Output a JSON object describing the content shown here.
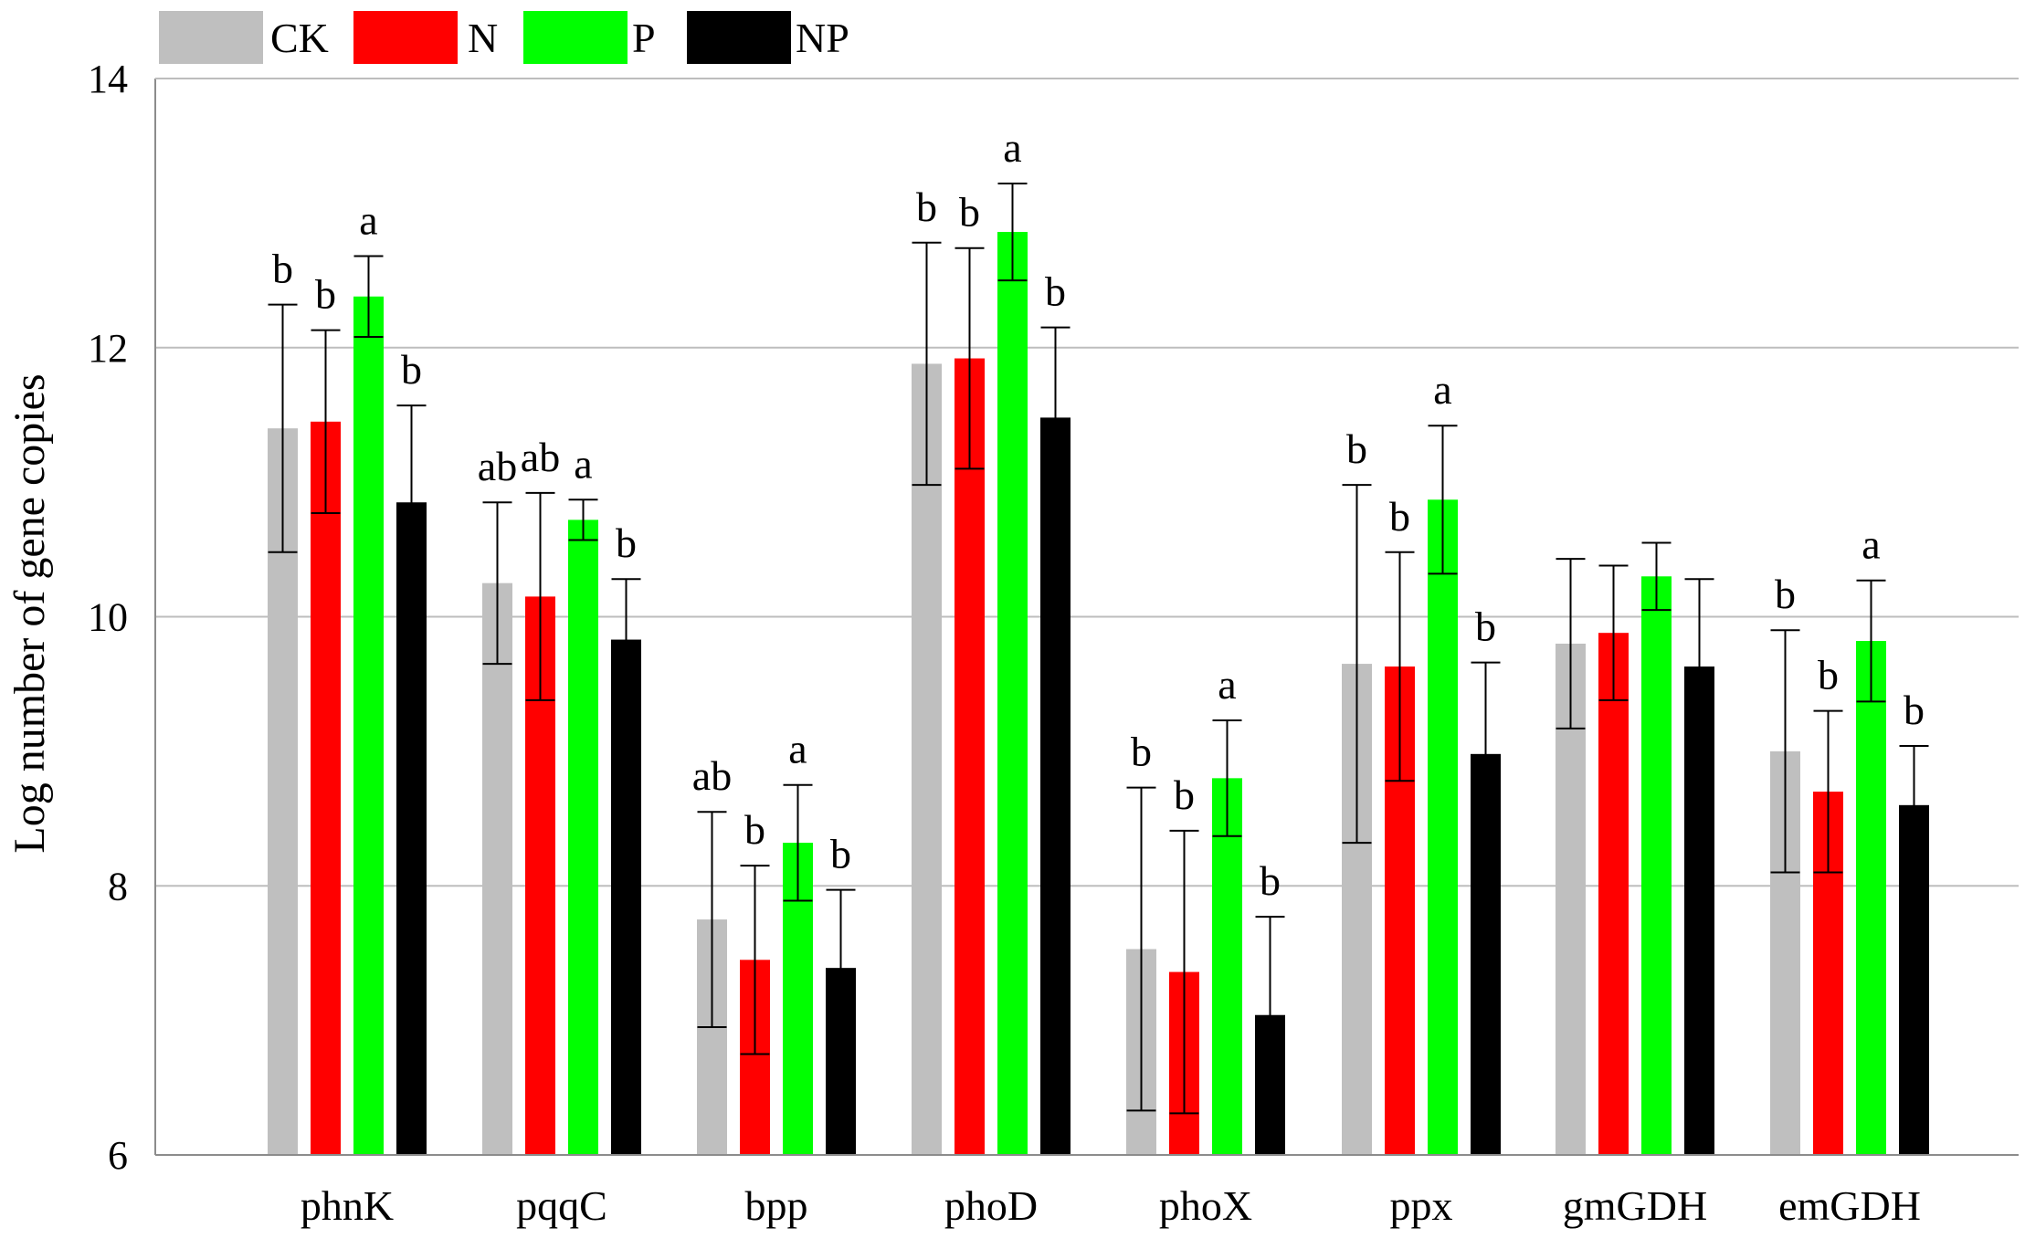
{
  "chart_data": {
    "type": "bar",
    "title": "",
    "xlabel": "",
    "ylabel": "Log number of gene copies",
    "ylim": [
      6,
      14
    ],
    "yticks": [
      6,
      8,
      10,
      12,
      14
    ],
    "grid": "horizontal",
    "legend_position": "top-left",
    "categories": [
      "phnK",
      "pqqC",
      "bpp",
      "phoD",
      "phoX",
      "ppx",
      "gmGDH",
      "emGDH"
    ],
    "series": [
      {
        "name": "CK",
        "color": "#bfbfbf",
        "values": [
          11.4,
          10.25,
          7.75,
          11.88,
          7.53,
          9.65,
          9.8,
          9.0
        ],
        "error": [
          0.92,
          0.6,
          0.8,
          0.9,
          1.2,
          1.33,
          0.63,
          0.9
        ],
        "letters": [
          "b",
          "ab",
          "ab",
          "b",
          "b",
          "b",
          "",
          "b"
        ]
      },
      {
        "name": "N",
        "color": "#ff0000",
        "values": [
          11.45,
          10.15,
          7.45,
          11.92,
          7.36,
          9.63,
          9.88,
          8.7
        ],
        "error": [
          0.68,
          0.77,
          0.7,
          0.82,
          1.05,
          0.85,
          0.5,
          0.6
        ],
        "letters": [
          "b",
          "ab",
          "b",
          "b",
          "b",
          "b",
          "",
          "b"
        ]
      },
      {
        "name": "P",
        "color": "#00ff00",
        "values": [
          12.38,
          10.72,
          8.32,
          12.86,
          8.8,
          10.87,
          10.3,
          9.82
        ],
        "error": [
          0.3,
          0.15,
          0.43,
          0.36,
          0.43,
          0.55,
          0.25,
          0.45
        ],
        "letters": [
          "a",
          "a",
          "a",
          "a",
          "a",
          "a",
          "",
          "a"
        ]
      },
      {
        "name": "NP",
        "color": "#000000",
        "values": [
          10.85,
          9.83,
          7.39,
          11.48,
          7.04,
          8.98,
          9.63,
          8.6
        ],
        "error": [
          0.72,
          0.45,
          0.58,
          0.67,
          0.73,
          0.68,
          0.65,
          0.44
        ],
        "letters": [
          "b",
          "b",
          "b",
          "b",
          "b",
          "b",
          "",
          "b"
        ]
      }
    ]
  }
}
